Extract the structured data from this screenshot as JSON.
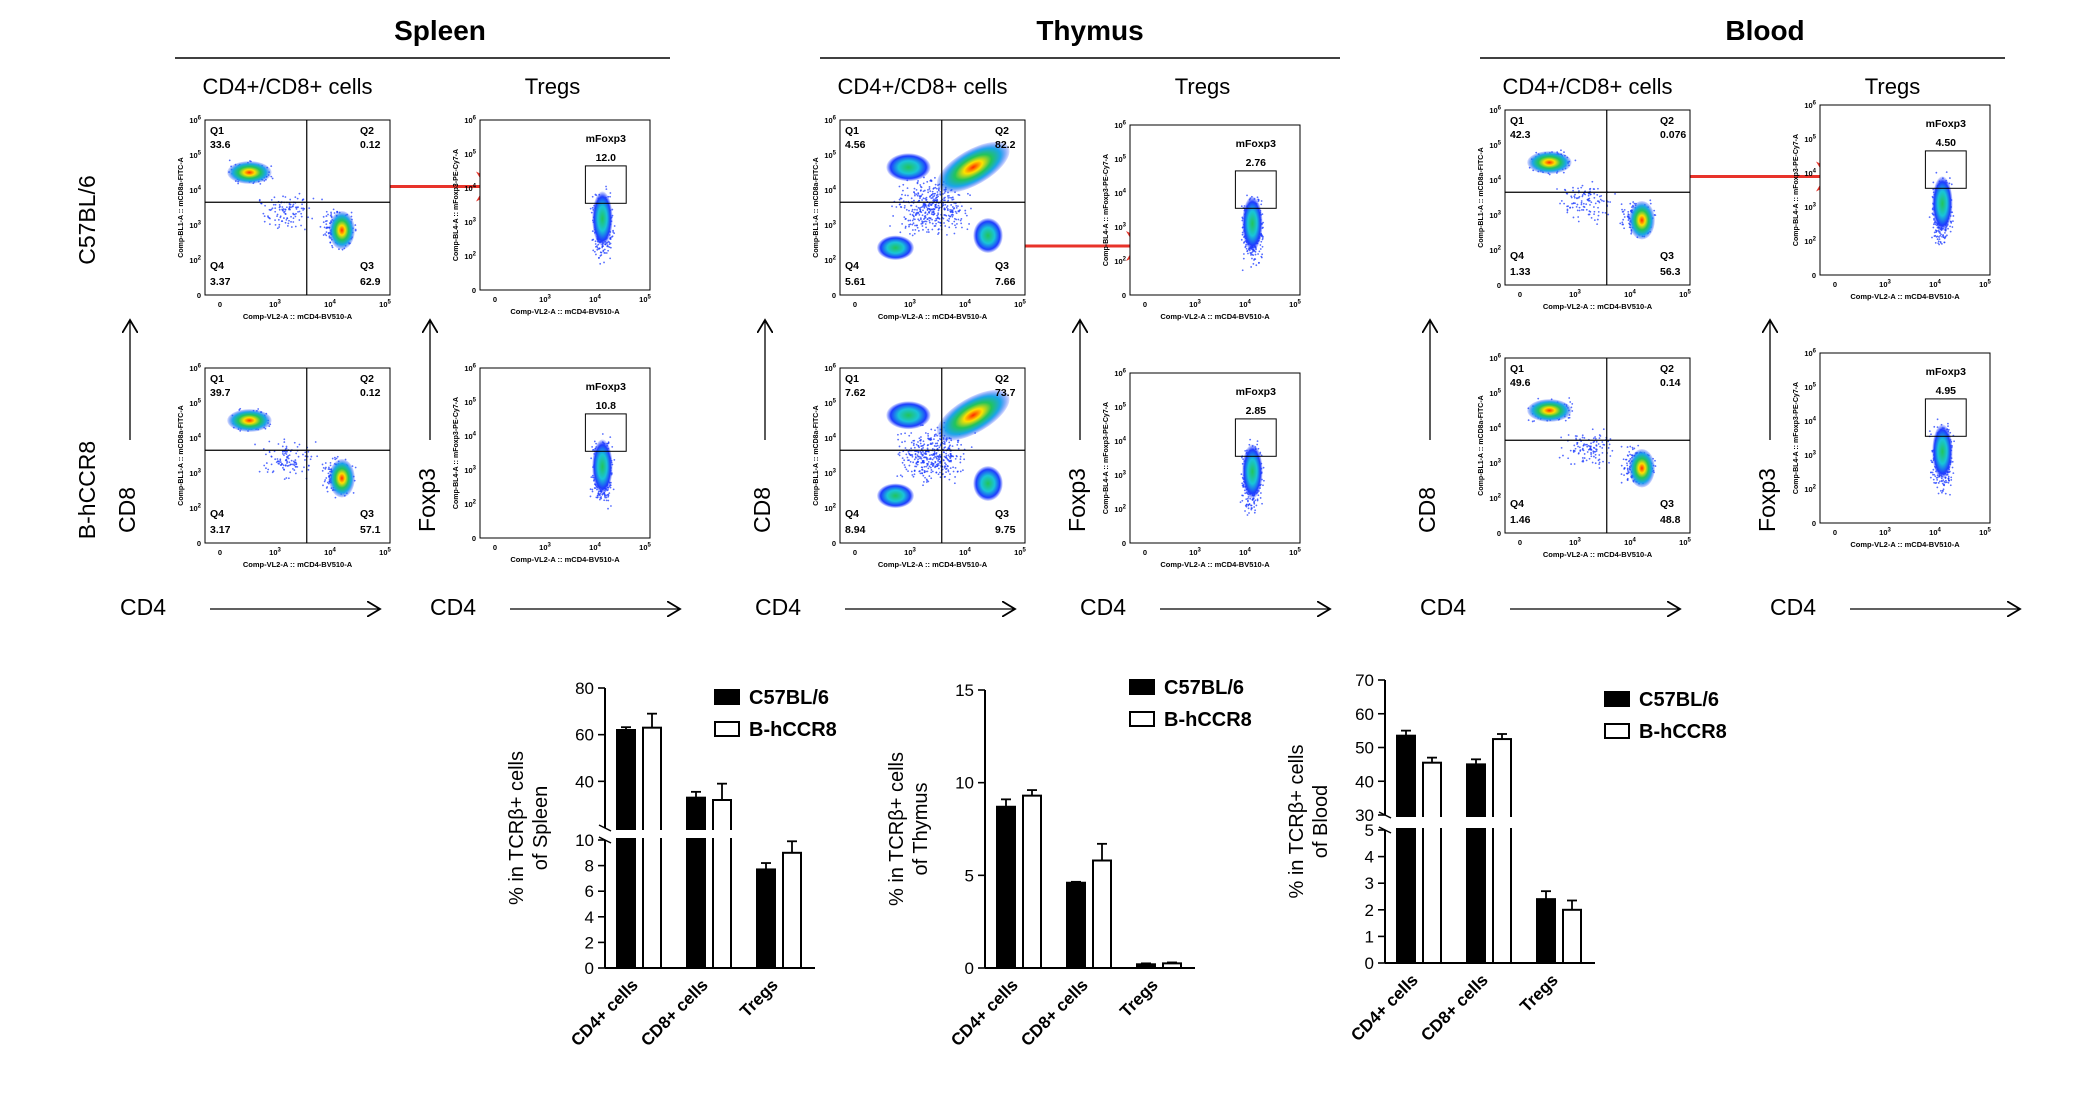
{
  "panels": [
    {
      "id": "spleen",
      "title": "Spleen",
      "col1_header": "CD4+/CD8+ cells",
      "col2_header": "Tregs",
      "row_labels": [
        "C57BL/6",
        "B-hCCR8"
      ],
      "axis_y_quad": "CD8",
      "axis_y_treg": "Foxp3",
      "axis_x": "CD4",
      "rows": [
        {
          "q1": "33.6",
          "q2": "0.12",
          "q3": "62.9",
          "q4": "3.37",
          "treg": "12.0"
        },
        {
          "q1": "39.7",
          "q2": "0.12",
          "q3": "57.1",
          "q4": "3.17",
          "treg": "10.8"
        }
      ]
    },
    {
      "id": "thymus",
      "title": "Thymus",
      "col1_header": "CD4+/CD8+ cells",
      "col2_header": "Tregs",
      "row_labels": [],
      "axis_y_quad": "CD8",
      "axis_y_treg": "Foxp3",
      "axis_x": "CD4",
      "rows": [
        {
          "q1": "4.56",
          "q2": "82.2",
          "q3": "7.66",
          "q4": "5.61",
          "treg": "2.76"
        },
        {
          "q1": "7.62",
          "q2": "73.7",
          "q3": "9.75",
          "q4": "8.94",
          "treg": "2.85"
        }
      ]
    },
    {
      "id": "blood",
      "title": "Blood",
      "col1_header": "CD4+/CD8+ cells",
      "col2_header": "Tregs",
      "row_labels": [],
      "axis_y_quad": "CD8",
      "axis_y_treg": "Foxp3",
      "axis_x": "CD4",
      "rows": [
        {
          "q1": "42.3",
          "q2": "0.076",
          "q3": "56.3",
          "q4": "1.33",
          "treg": "4.50"
        },
        {
          "q1": "49.6",
          "q2": "0.14",
          "q3": "48.8",
          "q4": "1.46",
          "treg": "4.95"
        }
      ]
    }
  ],
  "flow_labels": {
    "quad_y_axis": "Comp-BL1-A :: mCD8a-FITC-A",
    "treg_y_axis": "Comp-BL4-A :: mFoxp3-PE-Cy7-A",
    "x_axis": "Comp-VL2-A :: mCD4-BV510-A",
    "gate_name": "mFoxp3",
    "quadrants": [
      "Q1",
      "Q2",
      "Q3",
      "Q4"
    ],
    "ticks_y": [
      "0",
      "10^2",
      "10^3",
      "10^4",
      "10^5",
      "10^6"
    ],
    "ticks_x": [
      "0",
      "10^3",
      "10^4",
      "10^5"
    ]
  },
  "colors": {
    "arrow": "#e8332a",
    "density_high": "#ff2a00",
    "density_mid": "#22c45a",
    "density_low": "#1e3cff",
    "bar_fill": "#000000"
  },
  "chart_data": [
    {
      "type": "bar",
      "categories": [
        "CD4+ cells",
        "CD8+ cells",
        "Tregs"
      ],
      "series": [
        {
          "name": "C57BL/6",
          "values": [
            62,
            33,
            7.7
          ],
          "errors": [
            1.2,
            2.5,
            0.5
          ]
        },
        {
          "name": "B-hCCR8",
          "values": [
            63,
            32,
            9.0
          ],
          "errors": [
            6,
            7,
            0.9
          ]
        }
      ],
      "ylabel": "% in TCRβ+ cells of Spleen",
      "ylabel_lines": [
        "% in TCRβ+ cells",
        "of Spleen"
      ],
      "axis_break": {
        "lower": [
          0,
          10
        ],
        "upper": [
          20,
          80
        ]
      },
      "lower_ticks": [
        0,
        2,
        4,
        6,
        8,
        10
      ],
      "upper_ticks": [
        40,
        60,
        80
      ],
      "legend": "top-right"
    },
    {
      "type": "bar",
      "categories": [
        "CD4+ cells",
        "CD8+ cells",
        "Tregs"
      ],
      "series": [
        {
          "name": "C57BL/6",
          "values": [
            8.7,
            4.6,
            0.2
          ],
          "errors": [
            0.4,
            0.05,
            0.05
          ]
        },
        {
          "name": "B-hCCR8",
          "values": [
            9.3,
            5.8,
            0.25
          ],
          "errors": [
            0.3,
            0.9,
            0.05
          ]
        }
      ],
      "ylabel": "% in TCRβ+ cells of Thymus",
      "ylabel_lines": [
        "% in TCRβ+ cells",
        "of Thymus"
      ],
      "ylim": [
        0,
        15
      ],
      "ticks": [
        0,
        5,
        10,
        15
      ],
      "legend": "top-right"
    },
    {
      "type": "bar",
      "categories": [
        "CD4+ cells",
        "CD8+ cells",
        "Tregs"
      ],
      "series": [
        {
          "name": "C57BL/6",
          "values": [
            53.5,
            45,
            2.4
          ],
          "errors": [
            1.5,
            1.5,
            0.3
          ]
        },
        {
          "name": "B-hCCR8",
          "values": [
            45.5,
            52.5,
            2.0
          ],
          "errors": [
            1.5,
            1.5,
            0.35
          ]
        }
      ],
      "ylabel": "% in TCRβ+ cells of Blood",
      "ylabel_lines": [
        "% in TCRβ+ cells",
        "of Blood"
      ],
      "axis_break": {
        "lower": [
          0,
          5
        ],
        "upper": [
          30,
          70
        ]
      },
      "lower_ticks": [
        0,
        1,
        2,
        3,
        4,
        5
      ],
      "upper_ticks": [
        30,
        40,
        50,
        60,
        70
      ],
      "legend": "top-right"
    }
  ]
}
